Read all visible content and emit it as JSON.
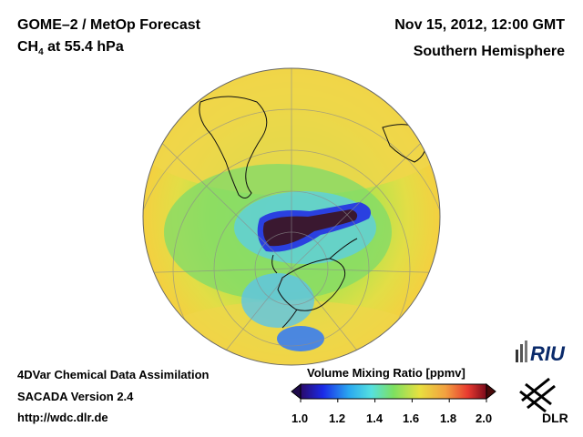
{
  "header": {
    "title_line1": "GOME–2 / MetOp Forecast",
    "species": "CH",
    "species_subscript": "4",
    "title_line2_rest": " at 55.4 hPa",
    "date": "Nov 15, 2012, 12:00 GMT",
    "region": "Southern Hemisphere"
  },
  "footer": {
    "line1": "4DVar Chemical Data Assimilation",
    "line2": "SACADA Version 2.4",
    "line3": "http://wdc.dlr.de"
  },
  "colorbar": {
    "title": "Volume Mixing Ratio [ppmv]",
    "ticks": [
      "1.0",
      "1.2",
      "1.4",
      "1.6",
      "1.8",
      "2.0"
    ],
    "min": 1.0,
    "max": 2.0
  },
  "logos": {
    "riu": "RIU",
    "dlr": "DLR"
  },
  "colors": {
    "background_field": "#f2d84a",
    "ocean_ring": "#b8e04a",
    "low_anomaly": "#3a1a2a",
    "mid_blue": "#3355ee"
  }
}
